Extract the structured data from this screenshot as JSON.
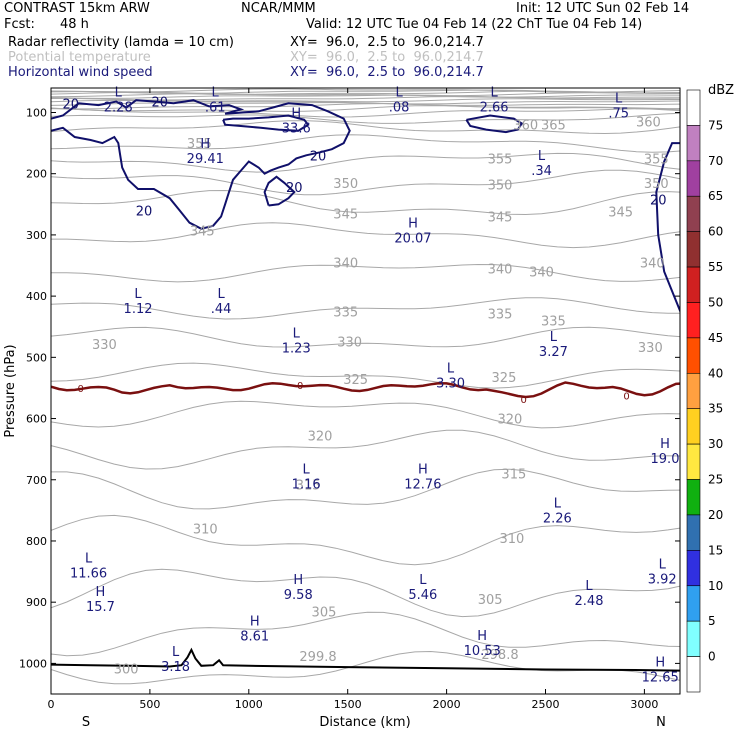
{
  "header": {
    "model": "CONTRAST 15km ARW",
    "center": "NCAR/MMM",
    "init": "Init: 12 UTC Sun 02 Feb 14",
    "fcst_label": "Fcst:",
    "fcst_value": "48 h",
    "valid": "Valid: 12 UTC Tue 04 Feb 14 (22 ChT Tue 04 Feb 14)"
  },
  "fields": [
    {
      "name": "Radar reflectivity (lamda = 10 cm)",
      "xy": "XY=  96.0,  2.5 to  96.0,214.7",
      "style": "black"
    },
    {
      "name": "Potential temperature",
      "xy": "XY=  96.0,  2.5 to  96.0,214.7",
      "style": "gray"
    },
    {
      "name": "Horizontal wind speed",
      "xy": "XY=  96.0,  2.5 to  96.0,214.7",
      "style": "blue"
    }
  ],
  "chart_data": {
    "type": "cross-section",
    "xlabel": "Distance (km)",
    "ylabel": "Pressure (hPa)",
    "xlim": [
      0,
      3180
    ],
    "ylim": [
      1050,
      60
    ],
    "x_ticks": [
      0,
      500,
      1000,
      1500,
      2000,
      2500,
      3000
    ],
    "y_ticks": [
      100,
      200,
      300,
      400,
      500,
      600,
      700,
      800,
      900,
      1000
    ],
    "x_end_labels": {
      "left": "S",
      "right": "N"
    },
    "colorbar": {
      "unit": "dBZ",
      "levels": [
        75,
        70,
        65,
        60,
        55,
        50,
        45,
        40,
        35,
        30,
        25,
        20,
        15,
        10,
        5,
        0
      ],
      "colors": [
        "#ffffff",
        "#c080c0",
        "#a040a0",
        "#904050",
        "#903030",
        "#d02020",
        "#ff2020",
        "#ff5000",
        "#ffa040",
        "#ffd020",
        "#ffe840",
        "#10b010",
        "#3070b0",
        "#3030e0",
        "#30a0f0",
        "#80ffff",
        "#ffffff"
      ]
    },
    "theta_labels": [
      {
        "x": 2540,
        "p": 120,
        "text": "365"
      },
      {
        "x": 3020,
        "p": 115,
        "text": "360"
      },
      {
        "x": 2400,
        "p": 120,
        "text": "360"
      },
      {
        "x": 750,
        "p": 150,
        "text": "355"
      },
      {
        "x": 2270,
        "p": 175,
        "text": "355"
      },
      {
        "x": 3060,
        "p": 175,
        "text": "355"
      },
      {
        "x": 1490,
        "p": 215,
        "text": "350"
      },
      {
        "x": 2270,
        "p": 218,
        "text": "350"
      },
      {
        "x": 3060,
        "p": 215,
        "text": "350"
      },
      {
        "x": 1490,
        "p": 265,
        "text": "345"
      },
      {
        "x": 2270,
        "p": 270,
        "text": "345"
      },
      {
        "x": 2880,
        "p": 262,
        "text": "345"
      },
      {
        "x": 765,
        "p": 293,
        "text": "345"
      },
      {
        "x": 1490,
        "p": 345,
        "text": "340"
      },
      {
        "x": 2270,
        "p": 355,
        "text": "340"
      },
      {
        "x": 2480,
        "p": 360,
        "text": "340"
      },
      {
        "x": 3040,
        "p": 345,
        "text": "340"
      },
      {
        "x": 1490,
        "p": 425,
        "text": "335"
      },
      {
        "x": 2270,
        "p": 428,
        "text": "335"
      },
      {
        "x": 2540,
        "p": 440,
        "text": "335"
      },
      {
        "x": 270,
        "p": 478,
        "text": "330"
      },
      {
        "x": 1510,
        "p": 474,
        "text": "330"
      },
      {
        "x": 3030,
        "p": 483,
        "text": "330"
      },
      {
        "x": 1540,
        "p": 535,
        "text": "325"
      },
      {
        "x": 2290,
        "p": 532,
        "text": "325"
      },
      {
        "x": 2320,
        "p": 600,
        "text": "320"
      },
      {
        "x": 1360,
        "p": 628,
        "text": "320"
      },
      {
        "x": 2340,
        "p": 690,
        "text": "315"
      },
      {
        "x": 1300,
        "p": 708,
        "text": "315"
      },
      {
        "x": 780,
        "p": 780,
        "text": "310"
      },
      {
        "x": 2330,
        "p": 795,
        "text": "310"
      },
      {
        "x": 2220,
        "p": 895,
        "text": "305"
      },
      {
        "x": 1380,
        "p": 915,
        "text": "305"
      },
      {
        "x": 380,
        "p": 1008,
        "text": "300"
      },
      {
        "x": 2270,
        "p": 985,
        "text": "298.8"
      },
      {
        "x": 1350,
        "p": 988,
        "text": "299.8"
      }
    ],
    "wind_labels": [
      {
        "x": 100,
        "p": 85,
        "text": "20"
      },
      {
        "x": 550,
        "p": 82,
        "text": "20"
      },
      {
        "x": 1350,
        "p": 170,
        "text": "20"
      },
      {
        "x": 1230,
        "p": 222,
        "text": "20"
      },
      {
        "x": 470,
        "p": 260,
        "text": "20"
      },
      {
        "x": 3070,
        "p": 242,
        "text": "20"
      }
    ],
    "wind_extrema": [
      {
        "type": "L",
        "value": "2.28",
        "x": 340,
        "p": 74
      },
      {
        "type": "L",
        "value": ".61",
        "x": 830,
        "p": 74
      },
      {
        "type": "L",
        "value": ".08",
        "x": 1760,
        "p": 74
      },
      {
        "type": "L",
        "value": "2.66",
        "x": 2240,
        "p": 74
      },
      {
        "type": "L",
        "value": ".75",
        "x": 2870,
        "p": 84
      },
      {
        "type": "H",
        "value": "33.6",
        "x": 1240,
        "p": 108
      },
      {
        "type": "H",
        "value": "29.41",
        "x": 780,
        "p": 158
      },
      {
        "type": "L",
        "value": ".34",
        "x": 2480,
        "p": 178
      },
      {
        "type": "H",
        "value": "20.07",
        "x": 1830,
        "p": 288
      },
      {
        "type": "L",
        "value": "1.12",
        "x": 440,
        "p": 403
      },
      {
        "type": "L",
        "value": ".44",
        "x": 860,
        "p": 403
      },
      {
        "type": "L",
        "value": "1.23",
        "x": 1240,
        "p": 468
      },
      {
        "type": "L",
        "value": "3.27",
        "x": 2540,
        "p": 473
      },
      {
        "type": "L",
        "value": "3.30",
        "x": 2020,
        "p": 525
      },
      {
        "type": "H",
        "value": "19.0",
        "x": 3120,
        "p": 648
      },
      {
        "type": "L",
        "value": "1.16",
        "x": 1290,
        "p": 690
      },
      {
        "type": "H",
        "value": "12.76",
        "x": 1880,
        "p": 690
      },
      {
        "type": "L",
        "value": "2.26",
        "x": 2560,
        "p": 745
      },
      {
        "type": "L",
        "value": "11.66",
        "x": 190,
        "p": 835
      },
      {
        "type": "L",
        "value": "3.92",
        "x": 3090,
        "p": 845
      },
      {
        "type": "H",
        "value": "9.58",
        "x": 1250,
        "p": 870
      },
      {
        "type": "L",
        "value": "5.46",
        "x": 1880,
        "p": 870
      },
      {
        "type": "L",
        "value": "2.48",
        "x": 2720,
        "p": 880
      },
      {
        "type": "H",
        "value": "15.7",
        "x": 250,
        "p": 890
      },
      {
        "type": "H",
        "value": "8.61",
        "x": 1030,
        "p": 938
      },
      {
        "type": "H",
        "value": "10.53",
        "x": 2180,
        "p": 962
      },
      {
        "type": "L",
        "value": "3.18",
        "x": 630,
        "p": 988
      },
      {
        "type": "H",
        "value": "12.65",
        "x": 3080,
        "p": 1005
      }
    ],
    "zero_dbz_labels": [
      {
        "x": 150,
        "p": 550,
        "text": "0"
      },
      {
        "x": 1260,
        "p": 545,
        "text": "0"
      },
      {
        "x": 2390,
        "p": 568,
        "text": "0"
      },
      {
        "x": 2910,
        "p": 562,
        "text": "0"
      }
    ]
  }
}
